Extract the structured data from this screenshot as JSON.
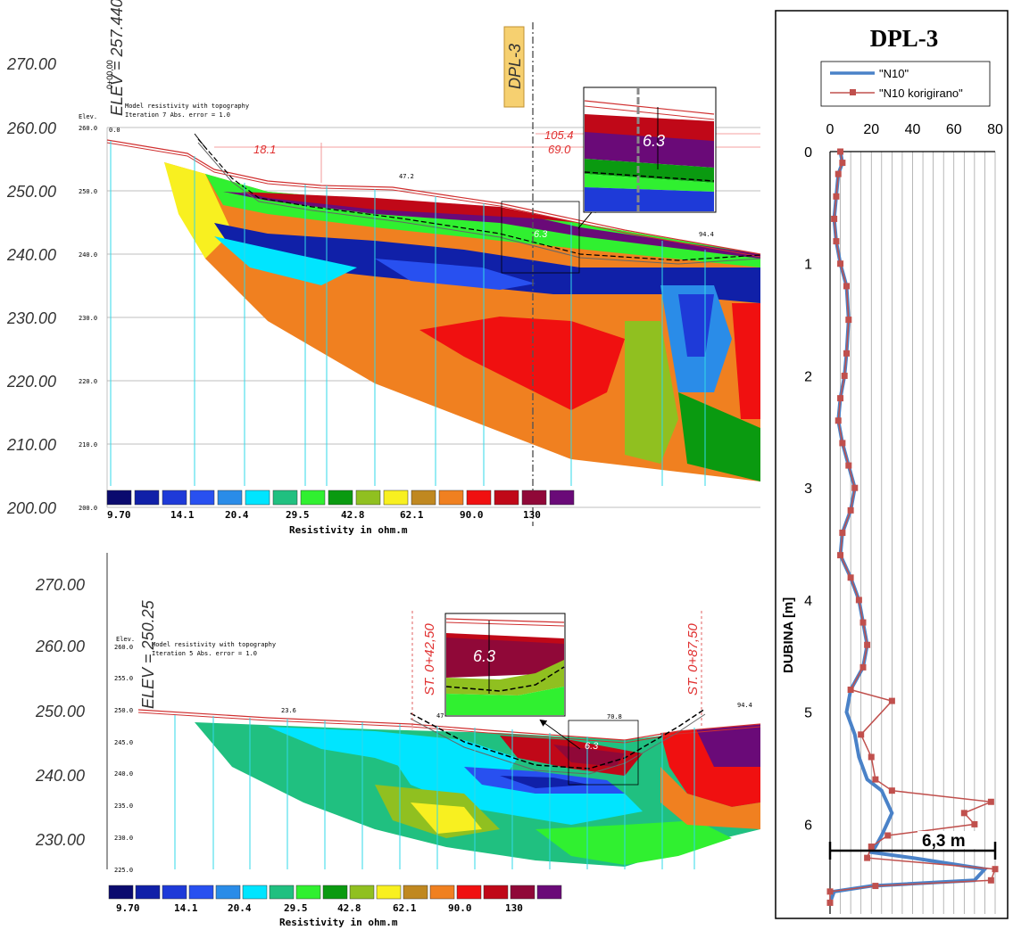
{
  "section_top": {
    "elevation_ticks": [
      "270.00",
      "260.00",
      "250.00",
      "240.00",
      "230.00",
      "220.00",
      "210.00",
      "200.00"
    ],
    "small_ticks": [
      "260.0",
      "250.0",
      "240.0",
      "230.0",
      "220.0",
      "210.0",
      "200.0"
    ],
    "station": "0+00,00",
    "elev_label": "ELEV = 257.440",
    "header_elev": "Elev.",
    "model_line1": "Model resistivity with topography",
    "model_line2": "Iteration 7 Abs. error = 1.0",
    "start_dist": "0.0",
    "dist_mid": "47.2",
    "dist_right": "94.4",
    "dim_18": "18.1",
    "dim_105": "105.4",
    "dim_69": "69.0",
    "dpl_tag": "DPL-3",
    "inset_label": "6.3",
    "small_label": "6.3",
    "legend_values": [
      "9.70",
      "14.1",
      "20.4",
      "29.5",
      "42.8",
      "62.1",
      "90.0",
      "130"
    ],
    "legend_title": "Resistivity in ohm.m"
  },
  "section_bottom": {
    "elevation_ticks": [
      "270.00",
      "260.00",
      "250.00",
      "240.00",
      "230.00"
    ],
    "small_ticks": [
      "260.0",
      "255.0",
      "250.0",
      "245.0",
      "240.0",
      "235.0",
      "230.0",
      "225.0"
    ],
    "elev_label": "ELEV = 250.25",
    "header_elev": "Elev.",
    "model_line1": "Model resistivity with topography",
    "model_line2": "Iteration 5 Abs. error = 1.0",
    "dist_left": "23.6",
    "dist_47": "47",
    "dist_mid": "70.8",
    "dist_right": "94.4",
    "st_left": "ST. 0+42,50",
    "st_right": "ST. 0+87,50",
    "inset_label": "6.3",
    "small_label": "6.3",
    "legend_values": [
      "9.70",
      "14.1",
      "20.4",
      "29.5",
      "42.8",
      "62.1",
      "90.0",
      "130"
    ],
    "legend_title": "Resistivity in ohm.m"
  },
  "legend_colors": [
    "#0a0a6e",
    "#1020a8",
    "#1e3ad8",
    "#2850f0",
    "#2a8ce8",
    "#00e5ff",
    "#20c080",
    "#30f030",
    "#0a9a10",
    "#90c020",
    "#f8f020",
    "#c08820",
    "#f08020",
    "#f01010",
    "#c00818",
    "#900838",
    "#6a0a78"
  ],
  "chart_data": {
    "type": "line",
    "title": "DPL-3",
    "ylabel": "DUBINA [m]",
    "xlim": [
      0,
      80
    ],
    "ylim": [
      0,
      6.8
    ],
    "x_ticks": [
      "0",
      "20",
      "40",
      "60",
      "80"
    ],
    "y_ticks": [
      "0",
      "1",
      "2",
      "3",
      "4",
      "5",
      "6"
    ],
    "annotation": "6,3 m",
    "legend_position": "top",
    "series": [
      {
        "name": "\"N10\"",
        "color": "#4a82c8",
        "points": [
          [
            5,
            0
          ],
          [
            6,
            0.1
          ],
          [
            4,
            0.2
          ],
          [
            3,
            0.4
          ],
          [
            2,
            0.6
          ],
          [
            3,
            0.8
          ],
          [
            5,
            1
          ],
          [
            8,
            1.2
          ],
          [
            9,
            1.5
          ],
          [
            8,
            1.8
          ],
          [
            7,
            2
          ],
          [
            5,
            2.2
          ],
          [
            4,
            2.4
          ],
          [
            6,
            2.6
          ],
          [
            9,
            2.8
          ],
          [
            12,
            3
          ],
          [
            10,
            3.2
          ],
          [
            6,
            3.4
          ],
          [
            5,
            3.6
          ],
          [
            10,
            3.8
          ],
          [
            14,
            4
          ],
          [
            16,
            4.2
          ],
          [
            18,
            4.4
          ],
          [
            16,
            4.6
          ],
          [
            10,
            4.8
          ],
          [
            8,
            5
          ],
          [
            12,
            5.2
          ],
          [
            14,
            5.4
          ],
          [
            18,
            5.6
          ],
          [
            25,
            5.7
          ],
          [
            30,
            5.9
          ],
          [
            25,
            6.1
          ],
          [
            22,
            6.2
          ],
          [
            20,
            6.25
          ],
          [
            40,
            6.3
          ],
          [
            75,
            6.4
          ],
          [
            70,
            6.5
          ],
          [
            20,
            6.55
          ],
          [
            2,
            6.6
          ],
          [
            0,
            6.7
          ]
        ]
      },
      {
        "name": "\"N10 korigirano\"",
        "color": "#c0504d",
        "points": [
          [
            5,
            0
          ],
          [
            6,
            0.1
          ],
          [
            4,
            0.2
          ],
          [
            3,
            0.4
          ],
          [
            2,
            0.6
          ],
          [
            3,
            0.8
          ],
          [
            5,
            1
          ],
          [
            8,
            1.2
          ],
          [
            9,
            1.5
          ],
          [
            8,
            1.8
          ],
          [
            7,
            2
          ],
          [
            5,
            2.2
          ],
          [
            4,
            2.4
          ],
          [
            6,
            2.6
          ],
          [
            9,
            2.8
          ],
          [
            12,
            3
          ],
          [
            10,
            3.2
          ],
          [
            6,
            3.4
          ],
          [
            5,
            3.6
          ],
          [
            10,
            3.8
          ],
          [
            14,
            4
          ],
          [
            16,
            4.2
          ],
          [
            18,
            4.4
          ],
          [
            16,
            4.6
          ],
          [
            10,
            4.8
          ],
          [
            30,
            4.9
          ],
          [
            15,
            5.2
          ],
          [
            20,
            5.4
          ],
          [
            22,
            5.6
          ],
          [
            30,
            5.7
          ],
          [
            78,
            5.8
          ],
          [
            65,
            5.9
          ],
          [
            70,
            6
          ],
          [
            28,
            6.1
          ],
          [
            20,
            6.2
          ],
          [
            18,
            6.3
          ],
          [
            80,
            6.4
          ],
          [
            78,
            6.5
          ],
          [
            22,
            6.55
          ],
          [
            0,
            6.6
          ],
          [
            0,
            6.7
          ]
        ]
      }
    ]
  }
}
